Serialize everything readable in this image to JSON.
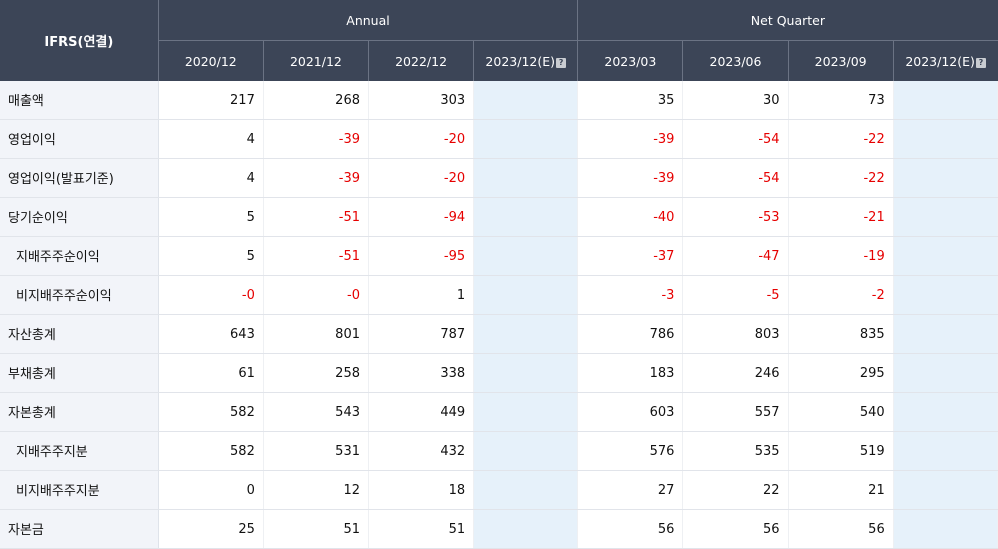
{
  "table": {
    "corner_label": "IFRS(연결)",
    "groups": {
      "annual": "Annual",
      "quarter": "Net Quarter"
    },
    "periods": [
      "2020/12",
      "2021/12",
      "2022/12",
      "2023/12(E)",
      "2023/03",
      "2023/06",
      "2023/09",
      "2023/12(E)"
    ],
    "help_icon": "question-icon",
    "rows": [
      {
        "label": "매출액",
        "cells": [
          "217",
          "268",
          "303",
          "",
          "35",
          "30",
          "73",
          ""
        ]
      },
      {
        "label": "영업이익",
        "cells": [
          "4",
          "-39",
          "-20",
          "",
          "-39",
          "-54",
          "-22",
          ""
        ]
      },
      {
        "label": "영업이익(발표기준)",
        "cells": [
          "4",
          "-39",
          "-20",
          "",
          "-39",
          "-54",
          "-22",
          ""
        ]
      },
      {
        "label": "당기순이익",
        "cells": [
          "5",
          "-51",
          "-94",
          "",
          "-40",
          "-53",
          "-21",
          ""
        ]
      },
      {
        "label": "지배주주순이익",
        "cells": [
          "5",
          "-51",
          "-95",
          "",
          "-37",
          "-47",
          "-19",
          ""
        ]
      },
      {
        "label": "비지배주주순이익",
        "cells": [
          "-0",
          "-0",
          "1",
          "",
          "-3",
          "-5",
          "-2",
          ""
        ]
      },
      {
        "label": "자산총계",
        "cells": [
          "643",
          "801",
          "787",
          "",
          "786",
          "803",
          "835",
          ""
        ]
      },
      {
        "label": "부채총계",
        "cells": [
          "61",
          "258",
          "338",
          "",
          "183",
          "246",
          "295",
          ""
        ]
      },
      {
        "label": "자본총계",
        "cells": [
          "582",
          "543",
          "449",
          "",
          "603",
          "557",
          "540",
          ""
        ]
      },
      {
        "label": "지배주주지분",
        "cells": [
          "582",
          "531",
          "432",
          "",
          "576",
          "535",
          "519",
          ""
        ]
      },
      {
        "label": "비지배주주지분",
        "cells": [
          "0",
          "12",
          "18",
          "",
          "27",
          "22",
          "21",
          ""
        ]
      },
      {
        "label": "자본금",
        "cells": [
          "25",
          "51",
          "51",
          "",
          "56",
          "56",
          "56",
          ""
        ]
      }
    ]
  },
  "colors": {
    "header_bg": "#3c4557",
    "label_bg": "#f2f4f9",
    "estimate_bg": "#e6f1fa",
    "negative_text": "#e60000"
  }
}
